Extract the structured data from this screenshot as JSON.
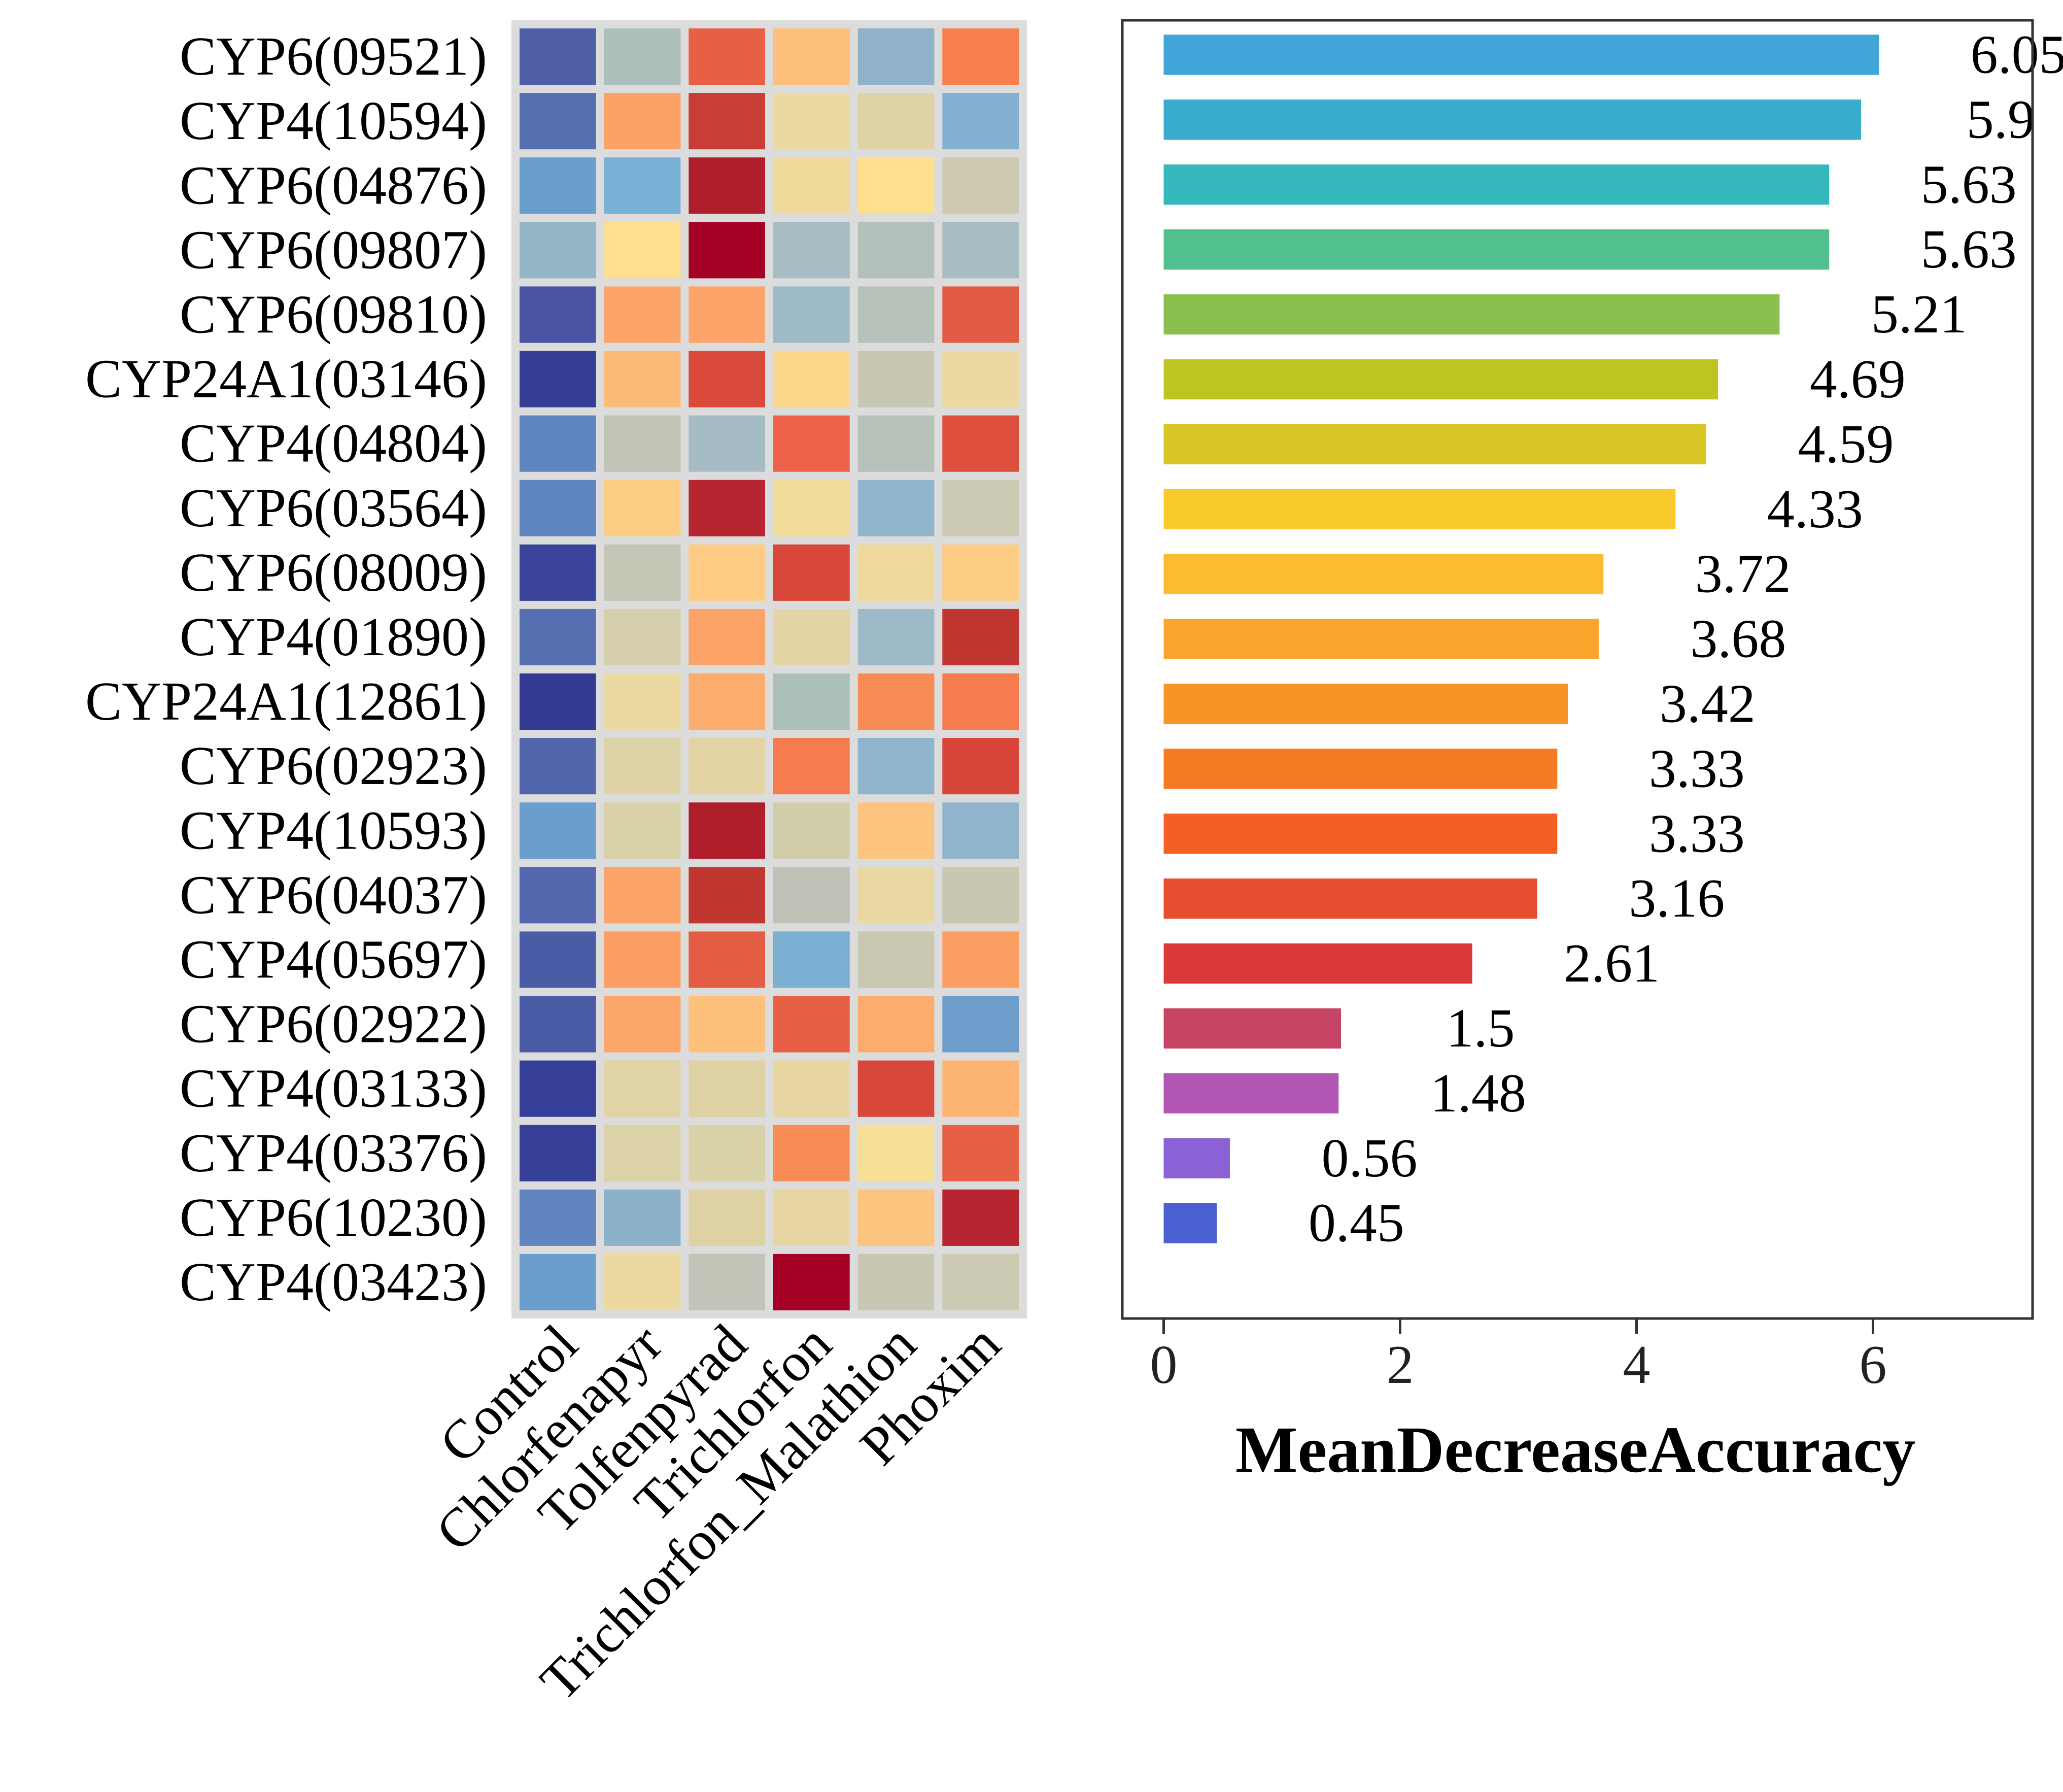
{
  "chart_data": [
    {
      "type": "heatmap",
      "title": "",
      "rows": [
        "CYP6(09521)",
        "CYP4(10594)",
        "CYP6(04876)",
        "CYP6(09807)",
        "CYP6(09810)",
        "CYP24A1(03146)",
        "CYP4(04804)",
        "CYP6(03564)",
        "CYP6(08009)",
        "CYP4(01890)",
        "CYP24A1(12861)",
        "CYP6(02923)",
        "CYP4(10593)",
        "CYP6(04037)",
        "CYP4(05697)",
        "CYP6(02922)",
        "CYP4(03133)",
        "CYP4(03376)",
        "CYP6(10230)",
        "CYP4(03423)"
      ],
      "columns": [
        "Control",
        "Chlorfenapyr",
        "Tolfenpyrad",
        "Trichlorfon",
        "Trichlorfon_Malathion",
        "Phoxim"
      ],
      "cell_colors": [
        [
          "#4e5ea7",
          "#adbfba",
          "#e75f45",
          "#fdbf7b",
          "#90b2c9",
          "#f8804e"
        ],
        [
          "#5470b0",
          "#fca265",
          "#c83d36",
          "#ecd9a1",
          "#ddd3a6",
          "#83afd0"
        ],
        [
          "#6a9ecd",
          "#79b0d7",
          "#b01e2c",
          "#f0da9b",
          "#fddf8e",
          "#cdcab1"
        ],
        [
          "#93b6c7",
          "#fddf8e",
          "#a50026",
          "#a8bdc3",
          "#b3c0bb",
          "#a8bdc3"
        ],
        [
          "#4954a3",
          "#fca46a",
          "#fca46a",
          "#9eb9c8",
          "#b6c1ba",
          "#e25c45"
        ],
        [
          "#343e96",
          "#fdbb7a",
          "#d94a3a",
          "#fcd88c",
          "#c8c7b1",
          "#ecd9a1"
        ],
        [
          "#6086bf",
          "#c1c4b6",
          "#a5bcc4",
          "#ec6349",
          "#b6c1ba",
          "#dd4f3c"
        ],
        [
          "#6086bf",
          "#fdcd85",
          "#b72530",
          "#f2dd9b",
          "#8fb4cc",
          "#cccab2"
        ],
        [
          "#3a449b",
          "#c4c6b5",
          "#fdcb84",
          "#d7483a",
          "#efd99c",
          "#fdcc84"
        ],
        [
          "#5470b0",
          "#d6cfab",
          "#fca468",
          "#e2d4a4",
          "#9cbac7",
          "#c23631"
        ],
        [
          "#323a92",
          "#ecd9a1",
          "#fcac6d",
          "#adbfba",
          "#f98c55",
          "#f67b4e"
        ],
        [
          "#5165ac",
          "#ddd3a6",
          "#e2d4a4",
          "#f67b4e",
          "#8fb4cc",
          "#d8463a"
        ],
        [
          "#6c9ecd",
          "#d9d1a8",
          "#b01e2c",
          "#d2cdab",
          "#fdc47f",
          "#8fb4cc"
        ],
        [
          "#5267ae",
          "#fca468",
          "#c23631",
          "#bfc3b7",
          "#e9d8a1",
          "#c8c7b1"
        ],
        [
          "#4a5ca6",
          "#fc9e62",
          "#e45c43",
          "#7cb0d3",
          "#c9c8b1",
          "#fc9e62"
        ],
        [
          "#4a5ca6",
          "#fca66a",
          "#fdc17c",
          "#e75f45",
          "#fcac6d",
          "#6e9fcc"
        ],
        [
          "#363f97",
          "#e0d3a5",
          "#ded2a5",
          "#e7d6a2",
          "#d7483a",
          "#fcb473"
        ],
        [
          "#363f97",
          "#dbd2a7",
          "#d9d1a8",
          "#f98c55",
          "#f6df96",
          "#e75f45"
        ],
        [
          "#6285c0",
          "#8cb2cb",
          "#ded2a5",
          "#e7d6a2",
          "#fdc47f",
          "#b72530"
        ],
        [
          "#6c9ecd",
          "#ecd9a1",
          "#c1c4b6",
          "#a50026",
          "#c8c7b1",
          "#cccab2"
        ]
      ]
    },
    {
      "type": "bar",
      "orientation": "horizontal",
      "title": "",
      "xlabel": "MeanDecreaseAccuracy",
      "ylabel": "",
      "xlim": [
        -0.35,
        7.35
      ],
      "xticks": [
        0,
        2,
        4,
        6
      ],
      "grid": false,
      "legend": "none",
      "bars": [
        {
          "value": 6.05,
          "label": "6.05",
          "color": "#42a5d8"
        },
        {
          "value": 5.9,
          "label": "5.9",
          "color": "#3aaccb"
        },
        {
          "value": 5.63,
          "label": "5.63",
          "color": "#35b8bc"
        },
        {
          "value": 5.63,
          "label": "5.63",
          "color": "#52bf8f"
        },
        {
          "value": 5.21,
          "label": "5.21",
          "color": "#8bc04f"
        },
        {
          "value": 4.69,
          "label": "4.69",
          "color": "#bec522"
        },
        {
          "value": 4.59,
          "label": "4.59",
          "color": "#d8c626"
        },
        {
          "value": 4.33,
          "label": "4.33",
          "color": "#f9ca2b"
        },
        {
          "value": 3.72,
          "label": "3.72",
          "color": "#fbbc30"
        },
        {
          "value": 3.68,
          "label": "3.68",
          "color": "#faa52d"
        },
        {
          "value": 3.42,
          "label": "3.42",
          "color": "#f79327"
        },
        {
          "value": 3.33,
          "label": "3.33",
          "color": "#f67b25"
        },
        {
          "value": 3.33,
          "label": "3.33",
          "color": "#f45f23"
        },
        {
          "value": 3.16,
          "label": "3.16",
          "color": "#e54e2f"
        },
        {
          "value": 2.61,
          "label": "2.61",
          "color": "#da3938"
        },
        {
          "value": 1.5,
          "label": "1.5",
          "color": "#c64565"
        },
        {
          "value": 1.48,
          "label": "1.48",
          "color": "#b156b2"
        },
        {
          "value": 0.56,
          "label": "0.56",
          "color": "#8b62d6"
        },
        {
          "value": 0.45,
          "label": "0.45",
          "color": "#4b60d2"
        }
      ]
    }
  ]
}
